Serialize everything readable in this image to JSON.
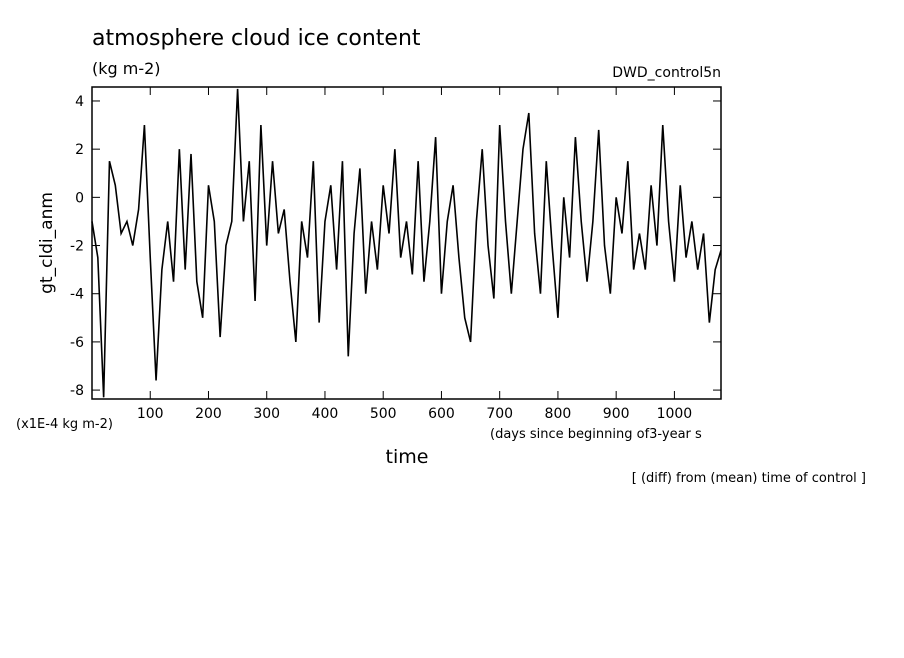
{
  "chart_data": {
    "type": "line",
    "title": "atmosphere cloud ice content",
    "subtitle": "(kg m-2)",
    "run_label": "DWD_control5n",
    "y_label": "gt_cldi_anm",
    "y_unit_label": "(x1E-4 kg m-2)",
    "x_unit_label": "(days since beginning of3-year s",
    "x_label": "time",
    "footnote": "[ (diff) from (mean) time of control ]",
    "xlim": [
      0,
      1080
    ],
    "ylim": [
      -8.37,
      4.58
    ],
    "xticks": [
      100,
      200,
      300,
      400,
      500,
      600,
      700,
      800,
      900,
      1000
    ],
    "yticks": [
      -8,
      -6,
      -4,
      -2,
      0,
      2,
      4
    ],
    "x": [
      0,
      10,
      20,
      30,
      40,
      50,
      60,
      70,
      80,
      90,
      100,
      110,
      120,
      130,
      140,
      150,
      160,
      170,
      180,
      190,
      200,
      210,
      220,
      230,
      240,
      250,
      260,
      270,
      280,
      290,
      300,
      310,
      320,
      330,
      340,
      350,
      360,
      370,
      380,
      390,
      400,
      410,
      420,
      430,
      440,
      450,
      460,
      470,
      480,
      490,
      500,
      510,
      520,
      530,
      540,
      550,
      560,
      570,
      580,
      590,
      600,
      610,
      620,
      630,
      640,
      650,
      660,
      670,
      680,
      690,
      700,
      710,
      720,
      730,
      740,
      750,
      760,
      770,
      780,
      790,
      800,
      810,
      820,
      830,
      840,
      850,
      860,
      870,
      880,
      890,
      900,
      910,
      920,
      930,
      940,
      950,
      960,
      970,
      980,
      990,
      1000,
      1010,
      1020,
      1030,
      1040,
      1050,
      1060,
      1070,
      1080
    ],
    "series": [
      {
        "name": "gt_cldi_anm",
        "color": "#000000",
        "values": [
          -1,
          -2.5,
          -8.3,
          1.5,
          0.5,
          -1.5,
          -1,
          -2,
          -0.5,
          3,
          -2.5,
          -7.6,
          -3,
          -1,
          -3.5,
          2,
          -3,
          1.8,
          -3.5,
          -5,
          0.5,
          -1,
          -5.8,
          -2,
          -1,
          4.5,
          -1,
          1.5,
          -4.3,
          3,
          -2,
          1.5,
          -1.5,
          -0.5,
          -3.5,
          -6,
          -1,
          -2.5,
          1.5,
          -5.2,
          -1,
          0.5,
          -3,
          1.5,
          -6.6,
          -1.5,
          1.2,
          -4,
          -1,
          -3,
          0.5,
          -1.5,
          2,
          -2.5,
          -1,
          -3.2,
          1.5,
          -3.5,
          -1,
          2.5,
          -4,
          -1,
          0.5,
          -2.5,
          -5,
          -6,
          -1,
          2,
          -2,
          -4.2,
          3,
          -1,
          -4,
          -1,
          2,
          3.5,
          -1.5,
          -4,
          1.5,
          -2,
          -5,
          0,
          -2.5,
          2.5,
          -1,
          -3.5,
          -1,
          2.8,
          -2,
          -4,
          0,
          -1.5,
          1.5,
          -3,
          -1.5,
          -3,
          0.5,
          -2,
          3,
          -1,
          -3.5,
          0.5,
          -2.5,
          -1,
          -3,
          -1.5,
          -5.2,
          -3,
          -2.2
        ]
      }
    ]
  }
}
